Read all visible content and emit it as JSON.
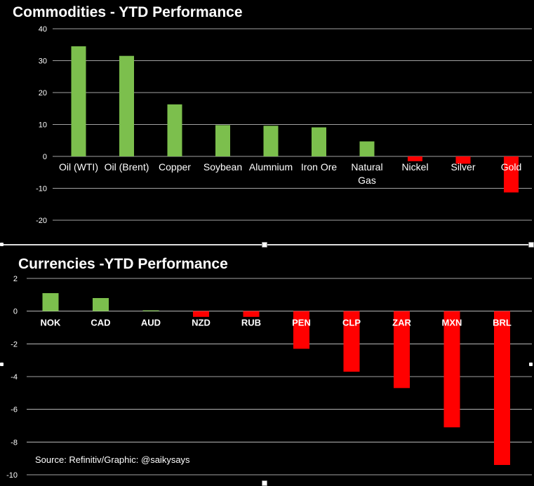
{
  "chart_data": [
    {
      "type": "bar",
      "title": "Commodities - YTD Performance",
      "categories": [
        "Oil (WTI)",
        "Oil (Brent)",
        "Copper",
        "Soybean",
        "Alumnium",
        "Iron Ore",
        "Natural Gas",
        "Nickel",
        "Silver",
        "Gold"
      ],
      "values": [
        34.5,
        31.5,
        16.3,
        9.8,
        9.6,
        9.1,
        4.7,
        -1.5,
        -2.3,
        -11.3
      ],
      "ylim": [
        -20,
        40
      ],
      "yticks": [
        "40",
        "30",
        "20",
        "10",
        "0",
        "-10",
        "-20"
      ],
      "grid": true,
      "colors": {
        "positive": "#7cbf4d",
        "negative": "#ff0000"
      }
    },
    {
      "type": "bar",
      "title": "Currencies -YTD Performance",
      "categories": [
        "NOK",
        "CAD",
        "AUD",
        "NZD",
        "RUB",
        "PEN",
        "CLP",
        "ZAR",
        "MXN",
        "BRL"
      ],
      "values": [
        1.1,
        0.8,
        0.05,
        -0.35,
        -0.35,
        -2.3,
        -3.7,
        -4.7,
        -7.1,
        -9.4
      ],
      "ylim": [
        -10,
        2
      ],
      "yticks": [
        "2",
        "0",
        "-2",
        "-4",
        "-6",
        "-8",
        "-10"
      ],
      "grid": true,
      "colors": {
        "positive": "#7cbf4d",
        "negative": "#ff0000"
      }
    }
  ],
  "source": "Source: Refinitiv/Graphic: @saikysays"
}
